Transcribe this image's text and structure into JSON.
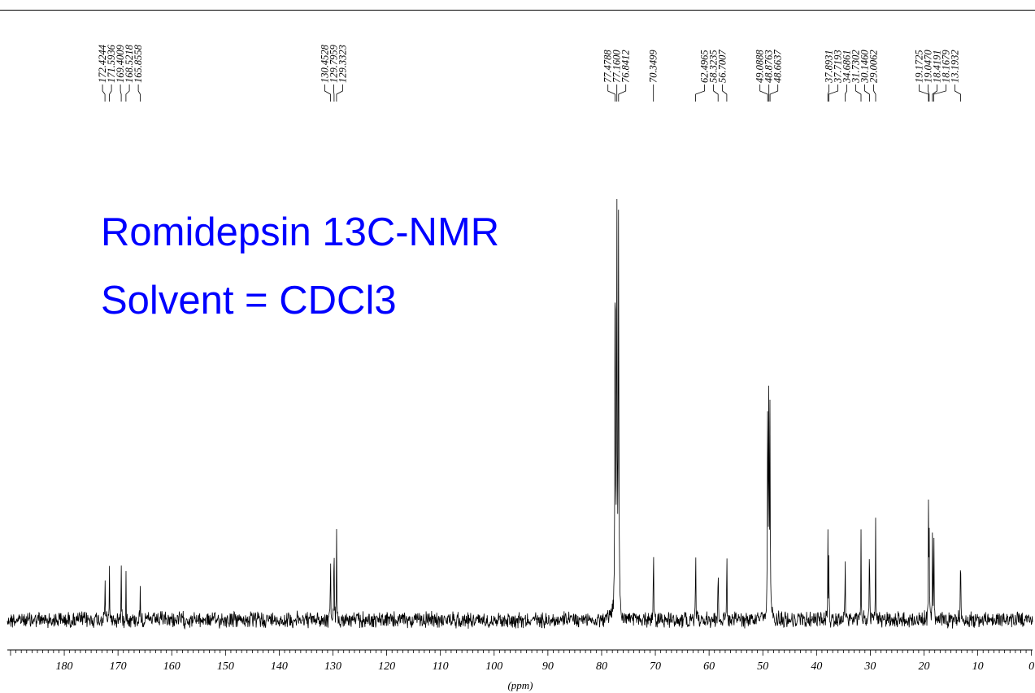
{
  "chart_data": {
    "type": "line",
    "title": "",
    "xlabel": "(ppm)",
    "ylabel": "",
    "x_reversed": true,
    "xlim": [
      190.6,
      -0.2
    ],
    "ticks": [
      "180",
      "170",
      "160",
      "150",
      "140",
      "130",
      "120",
      "110",
      "100",
      "90",
      "80",
      "70",
      "60",
      "50",
      "40",
      "30",
      "20",
      "10",
      "0"
    ],
    "tick_values": [
      180,
      170,
      160,
      150,
      140,
      130,
      120,
      110,
      100,
      90,
      80,
      70,
      60,
      50,
      40,
      30,
      20,
      10,
      0
    ],
    "annotation_lines": [
      "Romidepsin 13C-NMR",
      "Solvent = CDCl3"
    ],
    "annotation_color": "#0000ff",
    "peak_labels": [
      {
        "group": 1,
        "labels": [
          "172.4244",
          "171.5936",
          "169.4009",
          "168.5218",
          "165.8558"
        ]
      },
      {
        "group": 2,
        "labels": [
          "130.4528",
          "129.7959",
          "129.3323"
        ]
      },
      {
        "group": 3,
        "labels": [
          "77.4788",
          "77.1600",
          "76.8412"
        ]
      },
      {
        "group": 4,
        "labels": [
          "70.3499"
        ]
      },
      {
        "group": 5,
        "labels": [
          "62.4965",
          "58.3235",
          "56.7007"
        ]
      },
      {
        "group": 6,
        "labels": [
          "49.0888",
          "48.8763",
          "48.6637"
        ]
      },
      {
        "group": 7,
        "labels": [
          "37.8931",
          "37.7193",
          "34.6861",
          "31.7302",
          "30.1460",
          "29.0062"
        ]
      },
      {
        "group": 8,
        "labels": [
          "19.1725",
          "19.0470",
          "18.4191",
          "18.1679",
          "13.1932"
        ]
      }
    ],
    "peaks": [
      {
        "ppm": 172.4244,
        "intensity": 0.13
      },
      {
        "ppm": 171.5936,
        "intensity": 0.14
      },
      {
        "ppm": 169.4009,
        "intensity": 0.15
      },
      {
        "ppm": 168.5218,
        "intensity": 0.12
      },
      {
        "ppm": 165.8558,
        "intensity": 0.1
      },
      {
        "ppm": 130.4528,
        "intensity": 0.22
      },
      {
        "ppm": 129.7959,
        "intensity": 0.25
      },
      {
        "ppm": 129.3323,
        "intensity": 0.22
      },
      {
        "ppm": 77.4788,
        "intensity": 0.98
      },
      {
        "ppm": 77.16,
        "intensity": 1.0
      },
      {
        "ppm": 76.8412,
        "intensity": 0.98
      },
      {
        "ppm": 70.3499,
        "intensity": 0.24
      },
      {
        "ppm": 62.4965,
        "intensity": 0.23
      },
      {
        "ppm": 58.3235,
        "intensity": 0.2
      },
      {
        "ppm": 56.7007,
        "intensity": 0.22
      },
      {
        "ppm": 49.0888,
        "intensity": 0.62
      },
      {
        "ppm": 48.8763,
        "intensity": 0.55
      },
      {
        "ppm": 48.6637,
        "intensity": 0.5
      },
      {
        "ppm": 37.8931,
        "intensity": 0.22
      },
      {
        "ppm": 37.7193,
        "intensity": 0.2
      },
      {
        "ppm": 34.6861,
        "intensity": 0.22
      },
      {
        "ppm": 31.7302,
        "intensity": 0.23
      },
      {
        "ppm": 30.146,
        "intensity": 0.26
      },
      {
        "ppm": 29.0062,
        "intensity": 0.25
      },
      {
        "ppm": 19.1725,
        "intensity": 0.28
      },
      {
        "ppm": 19.047,
        "intensity": 0.27
      },
      {
        "ppm": 18.4191,
        "intensity": 0.28
      },
      {
        "ppm": 18.1679,
        "intensity": 0.27
      },
      {
        "ppm": 13.1932,
        "intensity": 0.25
      }
    ]
  }
}
